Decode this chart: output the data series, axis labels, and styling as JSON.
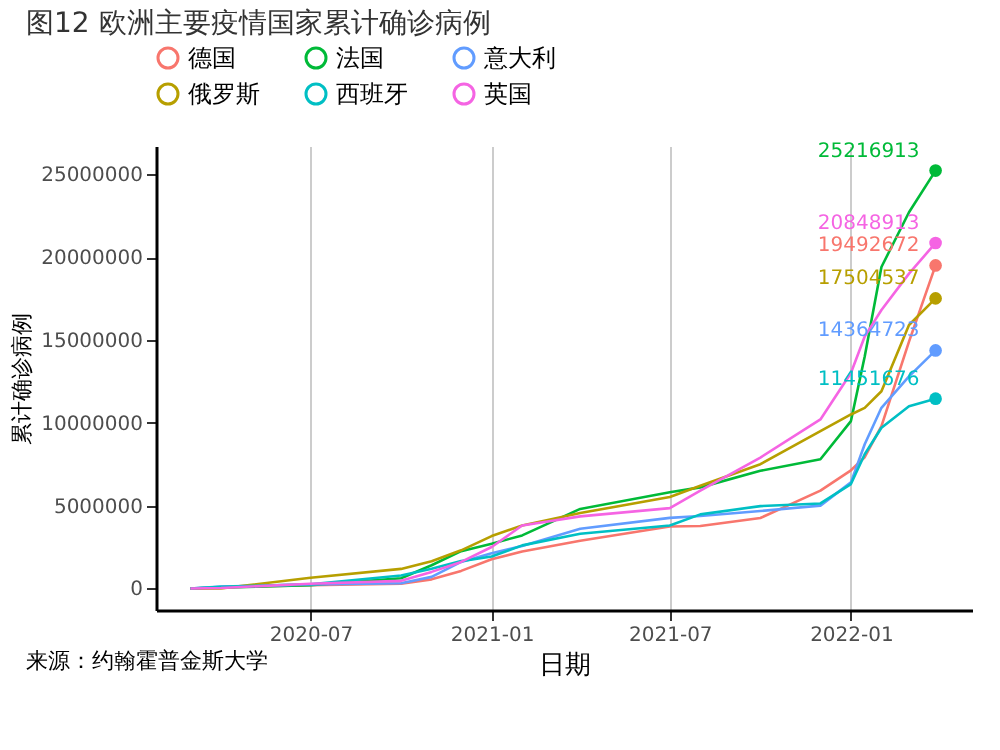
{
  "chart_data": {
    "type": "line",
    "title": "图12 欧洲主要疫情国家累计确诊病例",
    "xlabel": "日期",
    "ylabel": "累计确诊病例",
    "annotations": [
      "来源：约翰霍普金斯大学"
    ],
    "x": [
      "2020-03-01",
      "2020-04-01",
      "2020-07-01",
      "2020-10-01",
      "2020-11-01",
      "2020-12-01",
      "2021-01-01",
      "2021-02-01",
      "2021-04-01",
      "2021-07-01",
      "2021-08-01",
      "2021-10-01",
      "2021-12-01",
      "2022-01-01",
      "2022-01-15",
      "2022-02-01",
      "2022-03-01",
      "2022-03-28"
    ],
    "series": [
      {
        "name": "德国",
        "color": "#f8766d",
        "values": [
          0,
          70000,
          196000,
          290000,
          550000,
          1060000,
          1760000,
          2230000,
          2880000,
          3740000,
          3770000,
          4250000,
          5900000,
          7130000,
          7920000,
          9800000,
          14900000,
          19492672
        ],
        "value_labels": [
          null,
          null,
          null,
          null,
          null,
          null,
          null,
          null,
          null,
          null,
          null,
          null,
          null,
          null,
          null,
          null,
          null,
          "19492672"
        ]
      },
      {
        "name": "法国",
        "color": "#00ba38",
        "values": [
          100,
          52000,
          200000,
          620000,
          1400000,
          2250000,
          2700000,
          3200000,
          4800000,
          5800000,
          6100000,
          7100000,
          7800000,
          10100000,
          14000000,
          19400000,
          22700000,
          25216913
        ],
        "value_labels": [
          null,
          null,
          null,
          null,
          null,
          null,
          null,
          null,
          null,
          null,
          null,
          null,
          null,
          null,
          null,
          null,
          null,
          "25216913"
        ]
      },
      {
        "name": "意大利",
        "color": "#619cff",
        "values": [
          1700,
          110000,
          240000,
          315000,
          700000,
          1600000,
          2130000,
          2560000,
          3600000,
          4260000,
          4370000,
          4670000,
          5000000,
          6400000,
          8700000,
          10900000,
          12800000,
          14364723
        ],
        "value_labels": [
          null,
          null,
          null,
          null,
          null,
          null,
          null,
          null,
          null,
          null,
          null,
          null,
          null,
          null,
          null,
          null,
          null,
          "14364723"
        ]
      },
      {
        "name": "俄罗斯",
        "color": "#b79f00",
        "values": [
          0,
          2800,
          650000,
          1180000,
          1640000,
          2300000,
          3160000,
          3800000,
          4550000,
          5520000,
          6200000,
          7500000,
          9500000,
          10500000,
          10900000,
          11900000,
          15900000,
          17504537
        ],
        "value_labels": [
          null,
          null,
          null,
          null,
          null,
          null,
          null,
          null,
          null,
          null,
          null,
          null,
          null,
          null,
          null,
          null,
          null,
          "17504537"
        ]
      },
      {
        "name": "西班牙",
        "color": "#00bfc4",
        "values": [
          80,
          100000,
          250000,
          780000,
          1190000,
          1650000,
          1930000,
          2600000,
          3300000,
          3800000,
          4470000,
          4970000,
          5130000,
          6300000,
          8100000,
          9700000,
          11000000,
          11451676
        ],
        "value_labels": [
          null,
          null,
          null,
          null,
          null,
          null,
          null,
          null,
          null,
          null,
          null,
          null,
          null,
          null,
          null,
          null,
          null,
          "11451676"
        ]
      },
      {
        "name": "英国",
        "color": "#f564e3",
        "values": [
          30,
          30000,
          285000,
          460000,
          1000000,
          1600000,
          2500000,
          3800000,
          4350000,
          4850000,
          5900000,
          7900000,
          10200000,
          13000000,
          15200000,
          16800000,
          19000000,
          20848913
        ],
        "value_labels": [
          null,
          null,
          null,
          null,
          null,
          null,
          null,
          null,
          null,
          null,
          null,
          null,
          null,
          null,
          null,
          null,
          null,
          "20848913"
        ]
      }
    ],
    "xlim": [
      "2020-01-26",
      "2022-05-04"
    ],
    "xticks": [
      {
        "value": "2020-07-01",
        "label": "2020-07"
      },
      {
        "value": "2021-01-01",
        "label": "2021-01"
      },
      {
        "value": "2021-07-01",
        "label": "2021-07"
      },
      {
        "value": "2022-01-01",
        "label": "2022-01"
      }
    ],
    "ylim": [
      -1300000,
      26700000
    ],
    "yticks": [
      0,
      5000000,
      10000000,
      15000000,
      20000000,
      25000000
    ],
    "grid": "x",
    "legend": "top"
  }
}
